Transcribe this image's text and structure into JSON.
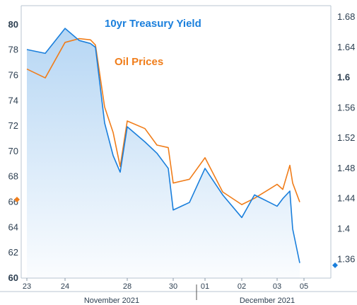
{
  "chart_data": {
    "type": "line",
    "title": "",
    "series": [
      {
        "name": "10yr Treasury Yield",
        "color": "#1a7fdc",
        "axis": "right",
        "x": [
          "23",
          "23.5",
          "24",
          "24.5",
          "25",
          "26",
          "26.5",
          "27",
          "27.5",
          "28",
          "28.5",
          "29",
          "29.5",
          "30",
          "30.5",
          "01",
          "01.5",
          "02",
          "02.5",
          "03",
          "03.3",
          "03.6",
          "04",
          "04.5"
        ],
        "values": [
          1.637,
          1.632,
          1.665,
          1.649,
          1.645,
          1.64,
          1.54,
          1.497,
          1.475,
          1.535,
          1.515,
          1.5,
          1.48,
          1.425,
          1.435,
          1.48,
          1.445,
          1.415,
          1.445,
          1.43,
          1.44,
          1.45,
          1.4,
          1.355
        ]
      },
      {
        "name": "Oil Prices",
        "color": "#f07d1a",
        "axis": "left",
        "x": [
          "23",
          "23.5",
          "24",
          "24.5",
          "25",
          "26",
          "26.5",
          "27",
          "27.5",
          "28",
          "28.5",
          "29",
          "29.5",
          "30",
          "30.5",
          "01",
          "01.5",
          "02",
          "02.5",
          "03",
          "03.3",
          "03.6",
          "04",
          "04.5"
        ],
        "values": [
          76.5,
          75.8,
          78.6,
          78.9,
          78.8,
          78.4,
          73.5,
          71.5,
          68.8,
          72.4,
          71.8,
          70.5,
          70.3,
          67.5,
          67.8,
          69.5,
          66.8,
          65.8,
          66.3,
          67.4,
          67.0,
          68.9,
          67.5,
          66.0
        ]
      }
    ],
    "left_axis": {
      "ylim": [
        60,
        81.5
      ],
      "ticks": [
        60,
        62,
        64,
        66,
        68,
        70,
        72,
        74,
        76,
        78,
        80
      ],
      "tick_labels": [
        "60",
        "62",
        "64",
        "66",
        "68",
        "70",
        "72",
        "74",
        "76",
        "78",
        "80"
      ]
    },
    "right_axis": {
      "ylim": [
        1.335,
        1.695
      ],
      "ticks": [
        1.36,
        1.4,
        1.44,
        1.48,
        1.52,
        1.56,
        1.6,
        1.64,
        1.68
      ],
      "tick_labels": [
        "1.36",
        "1.4",
        "1.44",
        "1.48",
        "1.52",
        "1.56",
        "1.6",
        "1.64",
        "1.68"
      ]
    },
    "x_axis": {
      "tick_labels": [
        "23",
        "24",
        "28",
        "30",
        "01",
        "02",
        "03",
        "05"
      ],
      "month_labels": [
        "November 2021",
        "December 2021"
      ]
    },
    "area_fill": "#1a7fdc",
    "grid": false,
    "left_end_marker": {
      "color": "#f07d1a",
      "value": 66.2
    },
    "right_end_marker": {
      "color": "#1a7fdc",
      "value": 1.352
    },
    "annotations": [
      {
        "text": "10yr Treasury Yield",
        "color": "#1a7fdc"
      },
      {
        "text": "Oil Prices",
        "color": "#f07d1a"
      }
    ]
  }
}
